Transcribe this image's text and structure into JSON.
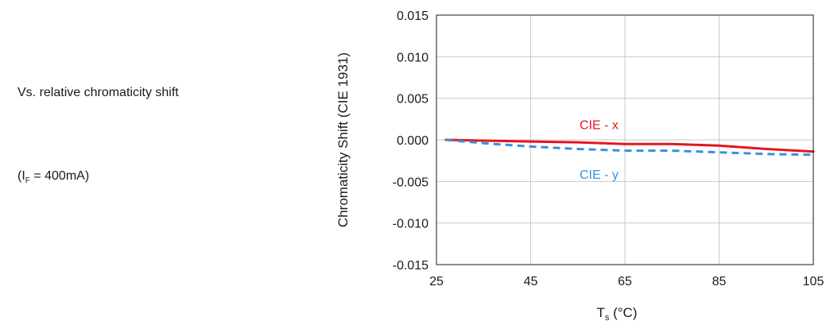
{
  "description": "Vs. relative chromaticity shift",
  "condition": {
    "symbol": "I",
    "subscript": "F",
    "rest": " = 400mA)",
    "prefix": "("
  },
  "chart_data": {
    "type": "line",
    "xlabel_main": "T",
    "xlabel_sub": "s",
    "xlabel_unit": " (°C)",
    "ylabel": "Chromaticity Shift (CIE 1931)",
    "xlim": [
      25,
      105
    ],
    "ylim": [
      -0.015,
      0.015
    ],
    "x_ticks": [
      25,
      45,
      65,
      85,
      105
    ],
    "y_ticks": [
      "0.015",
      "0.010",
      "0.005",
      "0.000",
      "-0.005",
      "-0.010",
      "-0.015"
    ],
    "y_tick_values": [
      0.015,
      0.01,
      0.005,
      0.0,
      -0.005,
      -0.01,
      -0.015
    ],
    "grid": true,
    "series": [
      {
        "name": "CIE - x",
        "color": "#e8141c",
        "style": "solid",
        "x": [
          27,
          35,
          45,
          55,
          65,
          75,
          85,
          95,
          105
        ],
        "y": [
          0.0,
          -0.0001,
          -0.0002,
          -0.0003,
          -0.0005,
          -0.0005,
          -0.0007,
          -0.0011,
          -0.0014
        ]
      },
      {
        "name": "CIE - y",
        "color": "#3a8fe0",
        "style": "dashed",
        "x": [
          27,
          35,
          45,
          55,
          65,
          75,
          85,
          95,
          105
        ],
        "y": [
          0.0,
          -0.0004,
          -0.0008,
          -0.0011,
          -0.0013,
          -0.0013,
          -0.0015,
          -0.0017,
          -0.0018
        ]
      }
    ]
  }
}
